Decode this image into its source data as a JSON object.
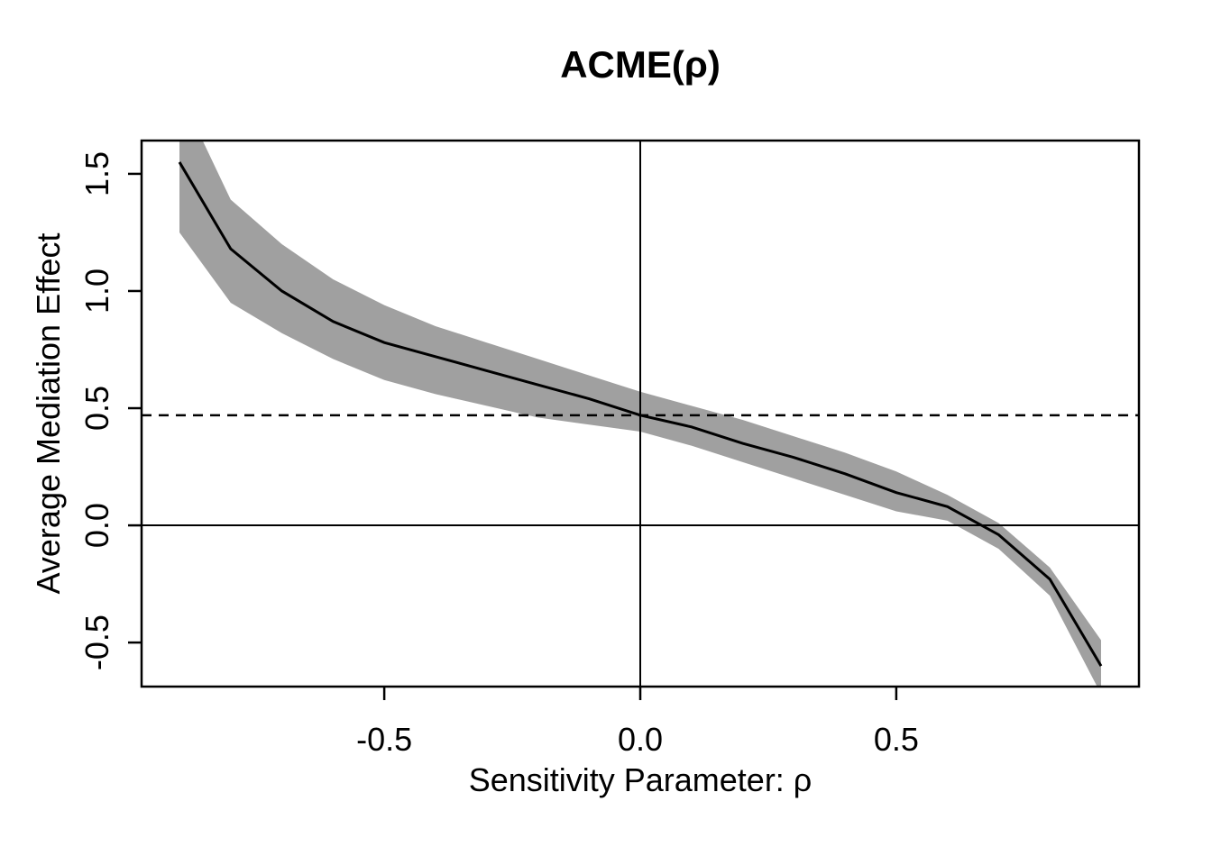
{
  "chart_data": {
    "type": "line",
    "title": "ACME(ρ)",
    "xlabel": "Sensitivity Parameter: ρ",
    "ylabel": "Average Mediation Effect",
    "grid": false,
    "legend_position": "none",
    "xlim": [
      -0.974,
      0.974
    ],
    "ylim": [
      -0.688,
      1.642
    ],
    "x_tick_labels": [
      "-0.5",
      "0.0",
      "0.5"
    ],
    "x_tick_values": [
      -0.5,
      0.0,
      0.5
    ],
    "y_tick_labels": [
      "-0.5",
      "0.0",
      "0.5",
      "1.0",
      "1.5"
    ],
    "y_tick_values": [
      -0.5,
      0.0,
      0.5,
      1.0,
      1.5
    ],
    "series": [
      {
        "name": "ACME",
        "x": [
          -0.9,
          -0.8,
          -0.7,
          -0.6,
          -0.5,
          -0.4,
          -0.3,
          -0.2,
          -0.1,
          0.0,
          0.1,
          0.2,
          0.3,
          0.4,
          0.5,
          0.6,
          0.7,
          0.8,
          0.9
        ],
        "values": [
          1.55,
          1.18,
          1.0,
          0.87,
          0.78,
          0.72,
          0.66,
          0.6,
          0.54,
          0.47,
          0.42,
          0.35,
          0.29,
          0.22,
          0.14,
          0.08,
          -0.04,
          -0.23,
          -0.6
        ],
        "ci_upper": [
          1.85,
          1.39,
          1.2,
          1.05,
          0.94,
          0.85,
          0.78,
          0.71,
          0.64,
          0.57,
          0.51,
          0.45,
          0.38,
          0.31,
          0.23,
          0.13,
          0.01,
          -0.18,
          -0.49
        ],
        "ci_lower": [
          1.25,
          0.95,
          0.82,
          0.71,
          0.62,
          0.56,
          0.51,
          0.46,
          0.43,
          0.4,
          0.34,
          0.27,
          0.2,
          0.13,
          0.06,
          0.02,
          -0.1,
          -0.3,
          -0.72
        ]
      }
    ],
    "reference_lines": {
      "dashed_horizontal_acme_at_rho0": 0.47,
      "solid_horizontal_zero": 0.0,
      "solid_vertical_rho_zero": 0.0
    },
    "acme_zero_crossing_rho": 0.67,
    "colors": {
      "band": "#a0a0a0",
      "line": "#000000",
      "reference": "#000000",
      "background": "#ffffff"
    }
  }
}
